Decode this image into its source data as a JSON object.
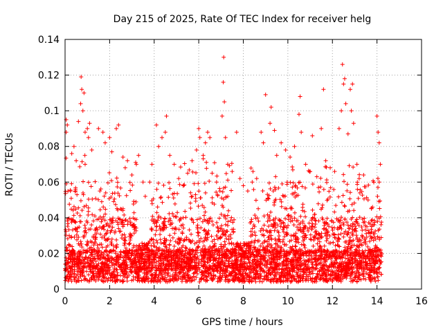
{
  "chart_data": {
    "type": "scatter",
    "title": "Day 215 of 2025, Rate Of TEC Index for receiver helg",
    "xlabel": "GPS time / hours",
    "ylabel": "ROTI / TECUs",
    "xlim": [
      0,
      16
    ],
    "ylim": [
      0,
      0.14
    ],
    "x_ticks": [
      0,
      2,
      4,
      6,
      8,
      10,
      12,
      14,
      16
    ],
    "y_ticks": [
      0,
      0.02,
      0.04,
      0.06,
      0.08,
      0.1,
      0.12,
      0.14
    ],
    "x_tick_labels": [
      "0",
      "2",
      "4",
      "6",
      "8",
      "10",
      "12",
      "14",
      "16"
    ],
    "y_tick_labels": [
      "0",
      "0.02",
      "0.04",
      "0.06",
      "0.08",
      "0.1",
      "0.12",
      "0.14"
    ],
    "grid": true,
    "marker": "+",
    "color": "#ff0000",
    "data_x_range": [
      0,
      14.2
    ],
    "series": [
      {
        "name": "helg",
        "points": [
          [
            0.05,
            0.095
          ],
          [
            0.05,
            0.088
          ],
          [
            0.1,
            0.092
          ],
          [
            0.6,
            0.094
          ],
          [
            0.7,
            0.104
          ],
          [
            0.72,
            0.119
          ],
          [
            0.75,
            0.112
          ],
          [
            0.8,
            0.1
          ],
          [
            0.85,
            0.11
          ],
          [
            0.9,
            0.088
          ],
          [
            1.0,
            0.09
          ],
          [
            1.05,
            0.085
          ],
          [
            1.1,
            0.093
          ],
          [
            0.3,
            0.076
          ],
          [
            0.4,
            0.08
          ],
          [
            0.5,
            0.072
          ],
          [
            0.9,
            0.07
          ],
          [
            1.2,
            0.078
          ],
          [
            1.5,
            0.09
          ],
          [
            1.7,
            0.088
          ],
          [
            1.8,
            0.082
          ],
          [
            2.0,
            0.085
          ],
          [
            2.1,
            0.077
          ],
          [
            2.3,
            0.09
          ],
          [
            2.4,
            0.092
          ],
          [
            2.6,
            0.074
          ],
          [
            2.7,
            0.068
          ],
          [
            2.8,
            0.072
          ],
          [
            3.0,
            0.064
          ],
          [
            3.2,
            0.07
          ],
          [
            3.3,
            0.075
          ],
          [
            3.5,
            0.06
          ],
          [
            3.6,
            0.052
          ],
          [
            3.8,
            0.06
          ],
          [
            3.9,
            0.07
          ],
          [
            4.1,
            0.092
          ],
          [
            4.2,
            0.08
          ],
          [
            4.35,
            0.085
          ],
          [
            4.5,
            0.088
          ],
          [
            4.55,
            0.097
          ],
          [
            4.7,
            0.075
          ],
          [
            4.9,
            0.07
          ],
          [
            5.1,
            0.062
          ],
          [
            5.3,
            0.058
          ],
          [
            5.5,
            0.065
          ],
          [
            5.7,
            0.072
          ],
          [
            5.9,
            0.078
          ],
          [
            6.0,
            0.09
          ],
          [
            6.05,
            0.085
          ],
          [
            6.2,
            0.075
          ],
          [
            6.3,
            0.082
          ],
          [
            6.4,
            0.088
          ],
          [
            6.5,
            0.085
          ],
          [
            6.6,
            0.065
          ],
          [
            6.8,
            0.06
          ],
          [
            6.95,
            0.055
          ],
          [
            7.05,
            0.097
          ],
          [
            7.1,
            0.116
          ],
          [
            7.12,
            0.13
          ],
          [
            7.15,
            0.105
          ],
          [
            7.2,
            0.085
          ],
          [
            7.3,
            0.07
          ],
          [
            7.5,
            0.066
          ],
          [
            7.7,
            0.088
          ],
          [
            7.85,
            0.062
          ],
          [
            8.0,
            0.058
          ],
          [
            8.2,
            0.055
          ],
          [
            8.4,
            0.06
          ],
          [
            8.6,
            0.062
          ],
          [
            8.8,
            0.088
          ],
          [
            8.9,
            0.082
          ],
          [
            9.0,
            0.109
          ],
          [
            9.2,
            0.093
          ],
          [
            9.25,
            0.102
          ],
          [
            9.4,
            0.089
          ],
          [
            9.5,
            0.075
          ],
          [
            9.7,
            0.082
          ],
          [
            9.9,
            0.078
          ],
          [
            10.1,
            0.074
          ],
          [
            10.3,
            0.08
          ],
          [
            10.5,
            0.098
          ],
          [
            10.55,
            0.108
          ],
          [
            10.6,
            0.088
          ],
          [
            10.8,
            0.07
          ],
          [
            11.0,
            0.066
          ],
          [
            11.1,
            0.086
          ],
          [
            11.3,
            0.063
          ],
          [
            11.5,
            0.09
          ],
          [
            11.6,
            0.112
          ],
          [
            11.7,
            0.072
          ],
          [
            11.9,
            0.068
          ],
          [
            12.1,
            0.066
          ],
          [
            12.3,
            0.09
          ],
          [
            12.4,
            0.1
          ],
          [
            12.45,
            0.126
          ],
          [
            12.5,
            0.115
          ],
          [
            12.55,
            0.118
          ],
          [
            12.6,
            0.104
          ],
          [
            12.7,
            0.087
          ],
          [
            12.8,
            0.112
          ],
          [
            12.85,
            0.1
          ],
          [
            12.9,
            0.115
          ],
          [
            12.95,
            0.093
          ],
          [
            13.1,
            0.07
          ],
          [
            13.2,
            0.062
          ],
          [
            13.4,
            0.064
          ],
          [
            13.6,
            0.05
          ],
          [
            13.8,
            0.046
          ],
          [
            14.0,
            0.097
          ],
          [
            14.05,
            0.088
          ],
          [
            14.1,
            0.082
          ],
          [
            14.15,
            0.07
          ],
          [
            14.1,
            0.06
          ]
        ]
      }
    ]
  }
}
